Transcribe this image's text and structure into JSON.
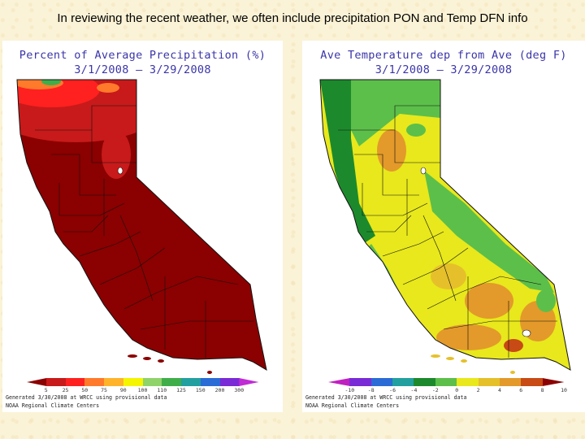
{
  "slide": {
    "title": "In reviewing the recent weather, we often include precipitation PON and Temp DFN info"
  },
  "left_map": {
    "title_line1": "Percent of Average Precipitation (%)",
    "title_line2": "3/1/2008 – 3/29/2008",
    "credit_line1": "Generated 3/30/2008 at WRCC using provisional data",
    "credit_line2": "NOAA Regional Climate Centers",
    "legend_labels": [
      "5",
      "25",
      "50",
      "75",
      "90",
      "100",
      "110",
      "125",
      "150",
      "200",
      "300"
    ],
    "legend_colors": [
      "#8b0000",
      "#c81a1a",
      "#ff2020",
      "#ff7a2a",
      "#ffb32a",
      "#f5f500",
      "#8fd36a",
      "#3fae4a",
      "#22a0a0",
      "#2a6bd6",
      "#7a2bd6",
      "#c02bd6"
    ],
    "dominant_color": "#8b0000"
  },
  "right_map": {
    "title_line1": "Ave Temperature dep from Ave (deg F)",
    "title_line2": "3/1/2008 – 3/29/2008",
    "credit_line1": "Generated 3/30/2008 at WRCC using provisional data",
    "credit_line2": "NOAA Regional Climate Centers",
    "legend_labels": [
      "-10",
      "-8",
      "-6",
      "-4",
      "-2",
      "0",
      "2",
      "4",
      "6",
      "8",
      "10"
    ],
    "legend_colors": [
      "#c020c0",
      "#7a2bd6",
      "#2a6bd6",
      "#22a0a0",
      "#1c8a2c",
      "#5cbf4a",
      "#e8e81c",
      "#e6c02a",
      "#e39a2a",
      "#c84a14",
      "#8b0000"
    ],
    "dominant_color": "#e8e81c"
  }
}
